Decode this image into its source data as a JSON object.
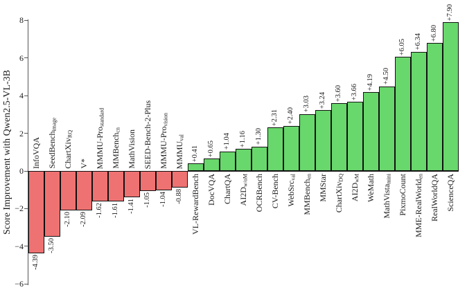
{
  "chart_data": {
    "type": "bar",
    "title": "",
    "ylabel": "Score Improvement with Qwen2.5-VL-3B",
    "ylim": [
      -6,
      8
    ],
    "yticks": [
      8,
      6,
      4,
      2,
      0,
      -2,
      -4,
      -6
    ],
    "grid": false,
    "legend": "none",
    "colors": {
      "negative_bar": "#EF7272",
      "positive_bar": "#68D76C",
      "bar_edge": "#111111",
      "axis": "#555555",
      "text": "#1a1a1a"
    },
    "bars": [
      {
        "name": "InfoVQA",
        "sub": "",
        "value": -4.39,
        "label": "-4.39"
      },
      {
        "name": "SeedBench",
        "sub": "image",
        "value": -3.5,
        "label": "-3.50"
      },
      {
        "name": "ChartXiv",
        "sub": "RQ",
        "value": -2.1,
        "label": "-2.10"
      },
      {
        "name": "V*",
        "sub": "",
        "value": -2.09,
        "label": "-2.09"
      },
      {
        "name": "MMMU-Pro",
        "sub": "standard",
        "value": -1.62,
        "label": "-1.62"
      },
      {
        "name": "MMBench",
        "sub": "cn",
        "value": -1.61,
        "label": "-1.61"
      },
      {
        "name": "MathVision",
        "sub": "",
        "value": -1.41,
        "label": "-1.41"
      },
      {
        "name": "SEED-Bench-2-Plus",
        "sub": "",
        "value": -1.05,
        "label": "-1.05"
      },
      {
        "name": "MMMU-Pro",
        "sub": "vision",
        "value": -1.04,
        "label": "-1.04"
      },
      {
        "name": "MMMU",
        "sub": "val",
        "value": -0.88,
        "label": "-0.88"
      },
      {
        "name": "VL-RewardBench",
        "sub": "",
        "value": 0.41,
        "label": "+0.41"
      },
      {
        "name": "DocVQA",
        "sub": "",
        "value": 0.65,
        "label": "+0.65"
      },
      {
        "name": "ChartQA",
        "sub": "",
        "value": 1.04,
        "label": "+1.04"
      },
      {
        "name": "AI2D",
        "sub": "w/oM",
        "value": 1.16,
        "label": "+1.16"
      },
      {
        "name": "OCRBench",
        "sub": "",
        "value": 1.3,
        "label": "+1.30"
      },
      {
        "name": "CV-Bench",
        "sub": "",
        "value": 2.31,
        "label": "+2.31"
      },
      {
        "name": "WebSrc",
        "sub": "val",
        "value": 2.4,
        "label": "+2.40"
      },
      {
        "name": "MMBench",
        "sub": "en",
        "value": 3.03,
        "label": "+3.03"
      },
      {
        "name": "MMStar",
        "sub": "",
        "value": 3.24,
        "label": "+3.24"
      },
      {
        "name": "ChartXiv",
        "sub": "DQ",
        "value": 3.6,
        "label": "+3.60"
      },
      {
        "name": "AI2D",
        "sub": "wM",
        "value": 3.66,
        "label": "+3.66"
      },
      {
        "name": "WeMath",
        "sub": "",
        "value": 4.19,
        "label": "+4.19"
      },
      {
        "name": "MathVista",
        "sub": "mini",
        "value": 4.5,
        "label": "+4.50"
      },
      {
        "name": "PixmoCount",
        "sub": "",
        "value": 6.05,
        "label": "+6.05"
      },
      {
        "name": "MME-RealWorld",
        "sub": "en",
        "value": 6.34,
        "label": "+6.34"
      },
      {
        "name": "RealWorldQA",
        "sub": "",
        "value": 6.8,
        "label": "+6.80"
      },
      {
        "name": "ScienceQA",
        "sub": "",
        "value": 7.9,
        "label": "+7.90"
      }
    ]
  }
}
